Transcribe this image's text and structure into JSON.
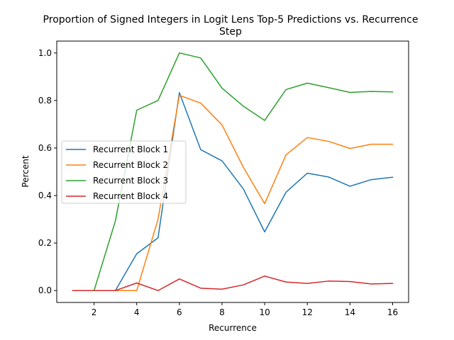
{
  "chart_data": {
    "type": "line",
    "title_line1": "Proportion of Signed Integers in Logit Lens Top-5 Predictions vs. Recurrence",
    "title_line2": "Step",
    "xlabel": "Recurrence",
    "ylabel": "Percent",
    "xlim": [
      0.25,
      16.75
    ],
    "ylim": [
      -0.05,
      1.05
    ],
    "xticks": [
      2,
      4,
      6,
      8,
      10,
      12,
      14,
      16
    ],
    "yticks": [
      0.0,
      0.2,
      0.4,
      0.6,
      0.8,
      1.0
    ],
    "ytick_labels": [
      "0.0",
      "0.2",
      "0.4",
      "0.6",
      "0.8",
      "1.0"
    ],
    "grid": false,
    "legend_position": "center-left",
    "x": [
      1,
      2,
      3,
      4,
      5,
      6,
      7,
      8,
      9,
      10,
      11,
      12,
      13,
      14,
      15,
      16
    ],
    "series": [
      {
        "name": "Recurrent Block 1",
        "color": "#1f77b4",
        "values": [
          0.0,
          0.0,
          0.0,
          0.155,
          0.222,
          0.833,
          0.593,
          0.546,
          0.428,
          0.247,
          0.414,
          0.494,
          0.478,
          0.439,
          0.467,
          0.477
        ]
      },
      {
        "name": "Recurrent Block 2",
        "color": "#ff7f0e",
        "values": [
          0.0,
          0.0,
          0.0,
          0.0,
          0.3,
          0.822,
          0.789,
          0.697,
          0.519,
          0.366,
          0.571,
          0.644,
          0.628,
          0.598,
          0.616,
          0.616
        ]
      },
      {
        "name": "Recurrent Block 3",
        "color": "#2ca02c",
        "values": [
          0.0,
          0.0,
          0.293,
          0.759,
          0.8,
          1.0,
          0.979,
          0.852,
          0.776,
          0.716,
          0.846,
          0.873,
          0.854,
          0.834,
          0.838,
          0.836
        ]
      },
      {
        "name": "Recurrent Block 4",
        "color": "#d62728",
        "values": [
          0.0,
          0.0,
          0.0,
          0.032,
          0.0,
          0.049,
          0.01,
          0.006,
          0.024,
          0.061,
          0.036,
          0.03,
          0.04,
          0.038,
          0.028,
          0.03
        ]
      }
    ]
  }
}
